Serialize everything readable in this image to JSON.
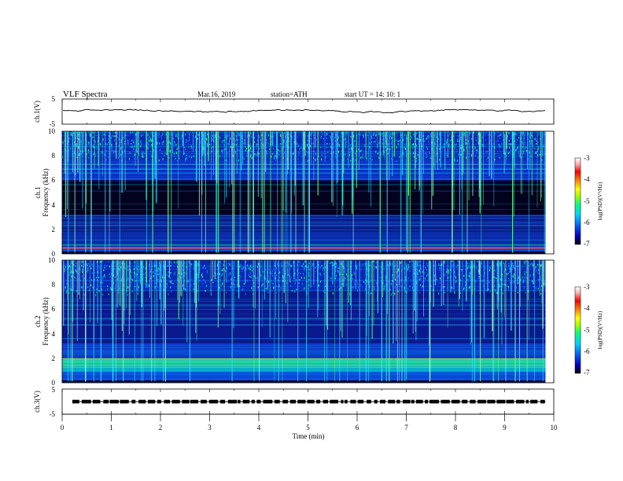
{
  "header": {
    "title": "VLF Spectra",
    "date": "Mar.16, 2019",
    "station": "station=ATH",
    "start_time": "start UT =  14: 10: 1"
  },
  "colors": {
    "background": "#ffffff",
    "spectrogram_floor": "#060636",
    "trace": "#000000"
  },
  "chart_data": [
    {
      "type": "line",
      "name": "ch1-amplitude",
      "ylabel": "ch.1(V)",
      "xlim": [
        0,
        10
      ],
      "ylim": [
        -5,
        5
      ],
      "yticks": [
        "5",
        "-5"
      ],
      "level_v": 0.3,
      "data_extent_min": 9.83
    },
    {
      "type": "heatmap",
      "name": "ch1-spectrogram",
      "ylabel": "ch.1\nFrequency (kHz)",
      "xlim": [
        0,
        10
      ],
      "ylim": [
        0,
        10
      ],
      "yticks": [
        "0",
        "2",
        "4",
        "6",
        "8",
        "10"
      ],
      "data_extent_min": 9.83,
      "colorbar": {
        "label": "log(PSD)(V²/Hz)",
        "range": [
          -7,
          -3
        ],
        "ticks": [
          "-3",
          "-4",
          "-5",
          "-6",
          "-7"
        ],
        "colors": [
          "#000000",
          "#0000c8",
          "#0060ff",
          "#00d0ff",
          "#00ff80",
          "#a0ff00",
          "#ffff00",
          "#ff8000",
          "#ff0000",
          "#ffb0b0",
          "#ffffff"
        ]
      }
    },
    {
      "type": "heatmap",
      "name": "ch2-spectrogram",
      "ylabel": "ch.2\nFrequency (kHz)",
      "xlim": [
        0,
        10
      ],
      "ylim": [
        0,
        10
      ],
      "yticks": [
        "0",
        "2",
        "4",
        "6",
        "8",
        "10"
      ],
      "data_extent_min": 9.83,
      "colorbar": {
        "label": "log(PSD)(V²/Hz)",
        "range": [
          -7,
          -3
        ],
        "ticks": [
          "-3",
          "-4",
          "-5",
          "-6",
          "-7"
        ],
        "colors": [
          "#000000",
          "#0000c8",
          "#0060ff",
          "#00d0ff",
          "#00ff80",
          "#a0ff00",
          "#ffff00",
          "#ff8000",
          "#ff0000",
          "#ffb0b0",
          "#ffffff"
        ]
      }
    },
    {
      "type": "line",
      "name": "ch3-amplitude",
      "ylabel": "ch.3(V)",
      "xlim": [
        0,
        10
      ],
      "ylim": [
        -5,
        5
      ],
      "yticks": [
        "5",
        "-5"
      ],
      "level_v": 0,
      "data_extent_min": 9.83
    }
  ],
  "x_axis": {
    "label": "Time (min)",
    "range": [
      0,
      10
    ],
    "ticks": [
      "0",
      "1",
      "2",
      "3",
      "4",
      "5",
      "6",
      "7",
      "8",
      "9",
      "10"
    ]
  }
}
